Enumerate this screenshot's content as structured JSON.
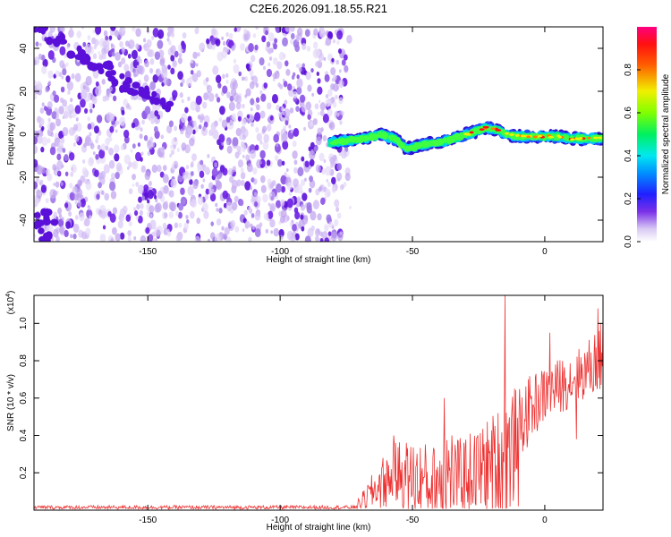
{
  "title": "C2E6.2026.091.18.55.R21",
  "chart_data": [
    {
      "type": "heatmap",
      "name": "spectrogram",
      "xlabel": "Height of straight line (km)",
      "ylabel": "Frequency (Hz)",
      "xlim": [
        -193,
        22
      ],
      "ylim": [
        -50,
        50
      ],
      "xticks": [
        -150,
        -100,
        -50,
        0
      ],
      "yticks": [
        -40,
        -20,
        0,
        20,
        40
      ],
      "colorbar": {
        "label": "Normalized spectral amplitude",
        "range": [
          0,
          1
        ],
        "ticks": [
          "0.0",
          "0.2",
          "0.4",
          "0.6",
          "0.8"
        ],
        "colormap": [
          "#ffffff",
          "#c9aef0",
          "#5a10e0",
          "#1040ff",
          "#00e0ff",
          "#00ff40",
          "#b0ff00",
          "#ffe000",
          "#ff2000",
          "#ff1080"
        ]
      },
      "noise_region_x": [
        -193,
        -75
      ],
      "diagonal_trend": {
        "x": [
          -193,
          -140
        ],
        "y": [
          50,
          10
        ]
      },
      "signal_track": {
        "x": [
          -81,
          -75,
          -68,
          -62,
          -57,
          -52,
          -47,
          -42,
          -37,
          -32,
          -27,
          -22,
          -18,
          -14,
          -10,
          -5,
          0,
          5,
          10,
          15,
          22
        ],
        "y": [
          -4,
          -3,
          -2,
          0,
          -2,
          -7,
          -5,
          -4,
          -3,
          -1,
          1,
          3,
          2,
          0,
          -1,
          -1,
          -1,
          -1,
          -2,
          -2,
          -2
        ]
      }
    },
    {
      "type": "line",
      "name": "snr",
      "xlabel": "Height of straight line (km)",
      "ylabel": "SNR (10 * v/v)",
      "yscale_label": "(x10",
      "yscale_exp": "4",
      "yscale_close": ")",
      "xlim": [
        -193,
        22
      ],
      "ylim": [
        0,
        1.15
      ],
      "xticks": [
        -150,
        -100,
        -50,
        0
      ],
      "yticks": [
        0.2,
        0.4,
        0.6,
        0.8,
        1.0
      ],
      "line_color": "#ee3333",
      "envelope": [
        {
          "x": -193,
          "base": 0.015,
          "amp": 0.01
        },
        {
          "x": -72,
          "base": 0.015,
          "amp": 0.01
        },
        {
          "x": -68,
          "base": 0.06,
          "amp": 0.06
        },
        {
          "x": -62,
          "base": 0.14,
          "amp": 0.14
        },
        {
          "x": -55,
          "base": 0.2,
          "amp": 0.18
        },
        {
          "x": -48,
          "base": 0.16,
          "amp": 0.22
        },
        {
          "x": -42,
          "base": 0.15,
          "amp": 0.2
        },
        {
          "x": -38,
          "base": 0.2,
          "amp": 0.35
        },
        {
          "x": -33,
          "base": 0.18,
          "amp": 0.2
        },
        {
          "x": -28,
          "base": 0.2,
          "amp": 0.22
        },
        {
          "x": -23,
          "base": 0.22,
          "amp": 0.25
        },
        {
          "x": -18,
          "base": 0.25,
          "amp": 0.3
        },
        {
          "x": -14,
          "base": 0.3,
          "amp": 0.4
        },
        {
          "x": -10,
          "base": 0.45,
          "amp": 0.2
        },
        {
          "x": -5,
          "base": 0.55,
          "amp": 0.18
        },
        {
          "x": 0,
          "base": 0.62,
          "amp": 0.15
        },
        {
          "x": 5,
          "base": 0.66,
          "amp": 0.15
        },
        {
          "x": 10,
          "base": 0.7,
          "amp": 0.15
        },
        {
          "x": 15,
          "base": 0.74,
          "amp": 0.15
        },
        {
          "x": 22,
          "base": 0.82,
          "amp": 0.2
        }
      ],
      "spikes": [
        {
          "x": -15,
          "y": 1.15
        },
        {
          "x": -12,
          "y": 0.05
        },
        {
          "x": -10,
          "y": 0.02
        },
        {
          "x": -38,
          "y": 0.6
        },
        {
          "x": -57,
          "y": 0.4
        },
        {
          "x": 20,
          "y": 1.08
        },
        {
          "x": 22,
          "y": 1.05
        },
        {
          "x": 12,
          "y": 0.38
        },
        {
          "x": 2,
          "y": 0.95
        }
      ]
    }
  ]
}
